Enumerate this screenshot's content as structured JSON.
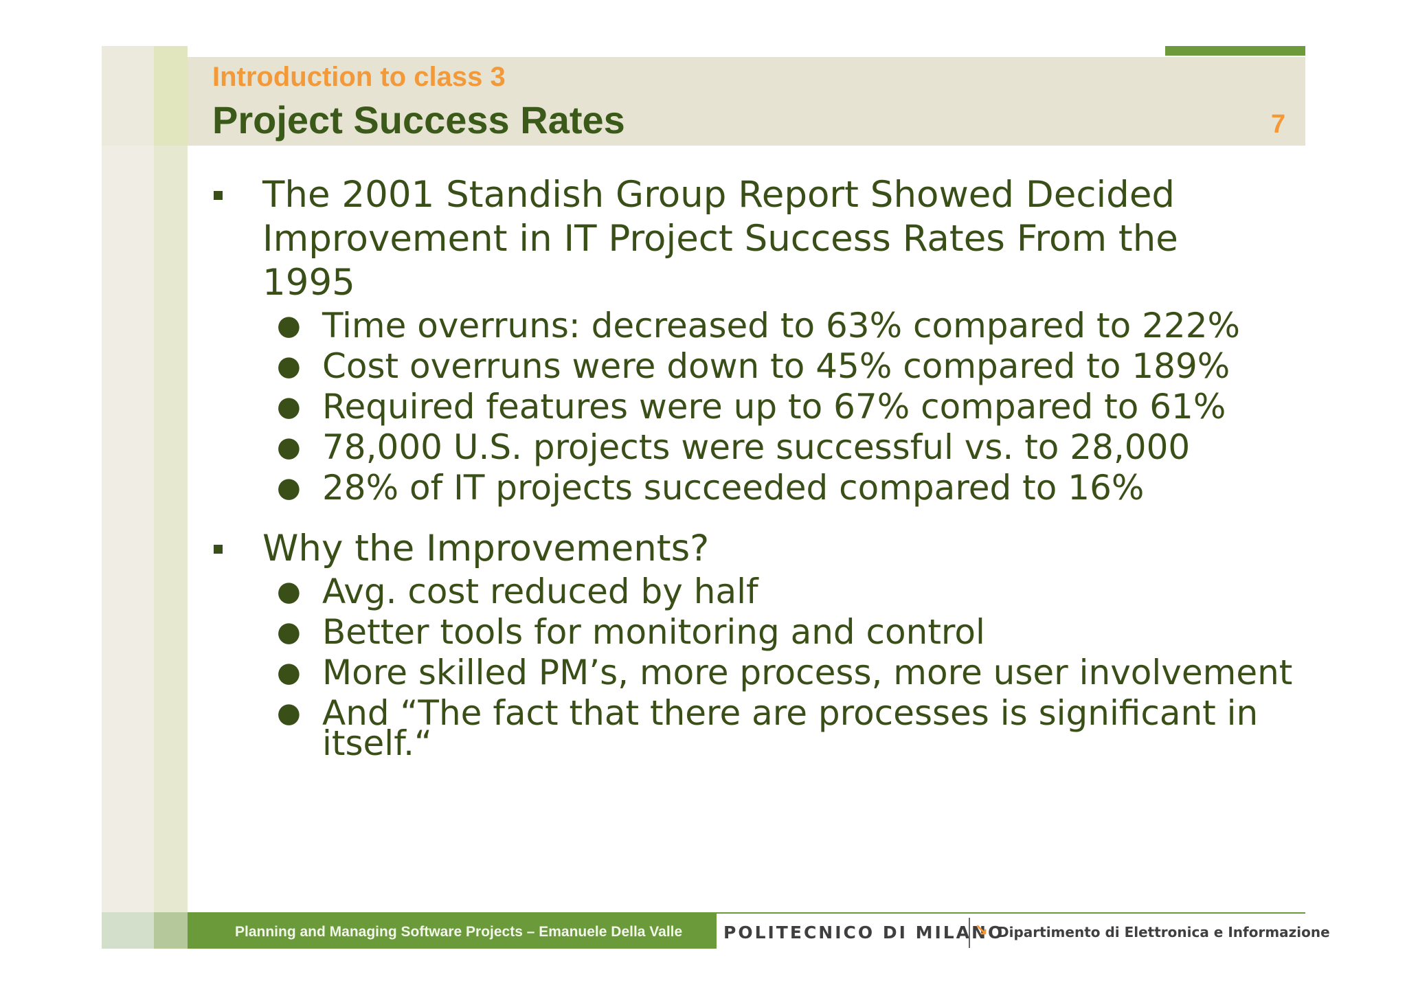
{
  "header": {
    "subtitle": "Introduction to class 3",
    "title": "Project Success Rates",
    "page_number": "7"
  },
  "content": {
    "bullet1": {
      "lines": [
        "The 2001 Standish Group Report Showed Decided",
        "Improvement in IT Project Success Rates From the",
        "1995"
      ],
      "items": [
        "Time overruns: decreased to 63% compared to 222%",
        "Cost overruns were down to 45% compared to 189%",
        "Required features were up to 67% compared to 61%",
        "78,000 U.S. projects were successful vs. to 28,000",
        "28% of IT projects succeeded compared to 16%"
      ]
    },
    "bullet2": {
      "lines": [
        "Why the Improvements?"
      ],
      "items": [
        "Avg. cost reduced by half",
        "Better tools for monitoring and control",
        "More skilled PM’s, more process, more user involvement",
        "And “The fact that there are processes is significant in",
        "itself.“"
      ]
    }
  },
  "footer": {
    "course": "Planning and Managing Software Projects – Emanuele Della Valle",
    "university": "POLITECNICO DI MILANO",
    "department": "Dipartimento di Elettronica e Informazione",
    "department_icon": "arrow-down-right-icon"
  },
  "colors": {
    "title": "#3b5a1a",
    "accent_orange": "#f29a3a",
    "footer_green": "#6b9a3b",
    "body_text": "#3a4f18"
  }
}
